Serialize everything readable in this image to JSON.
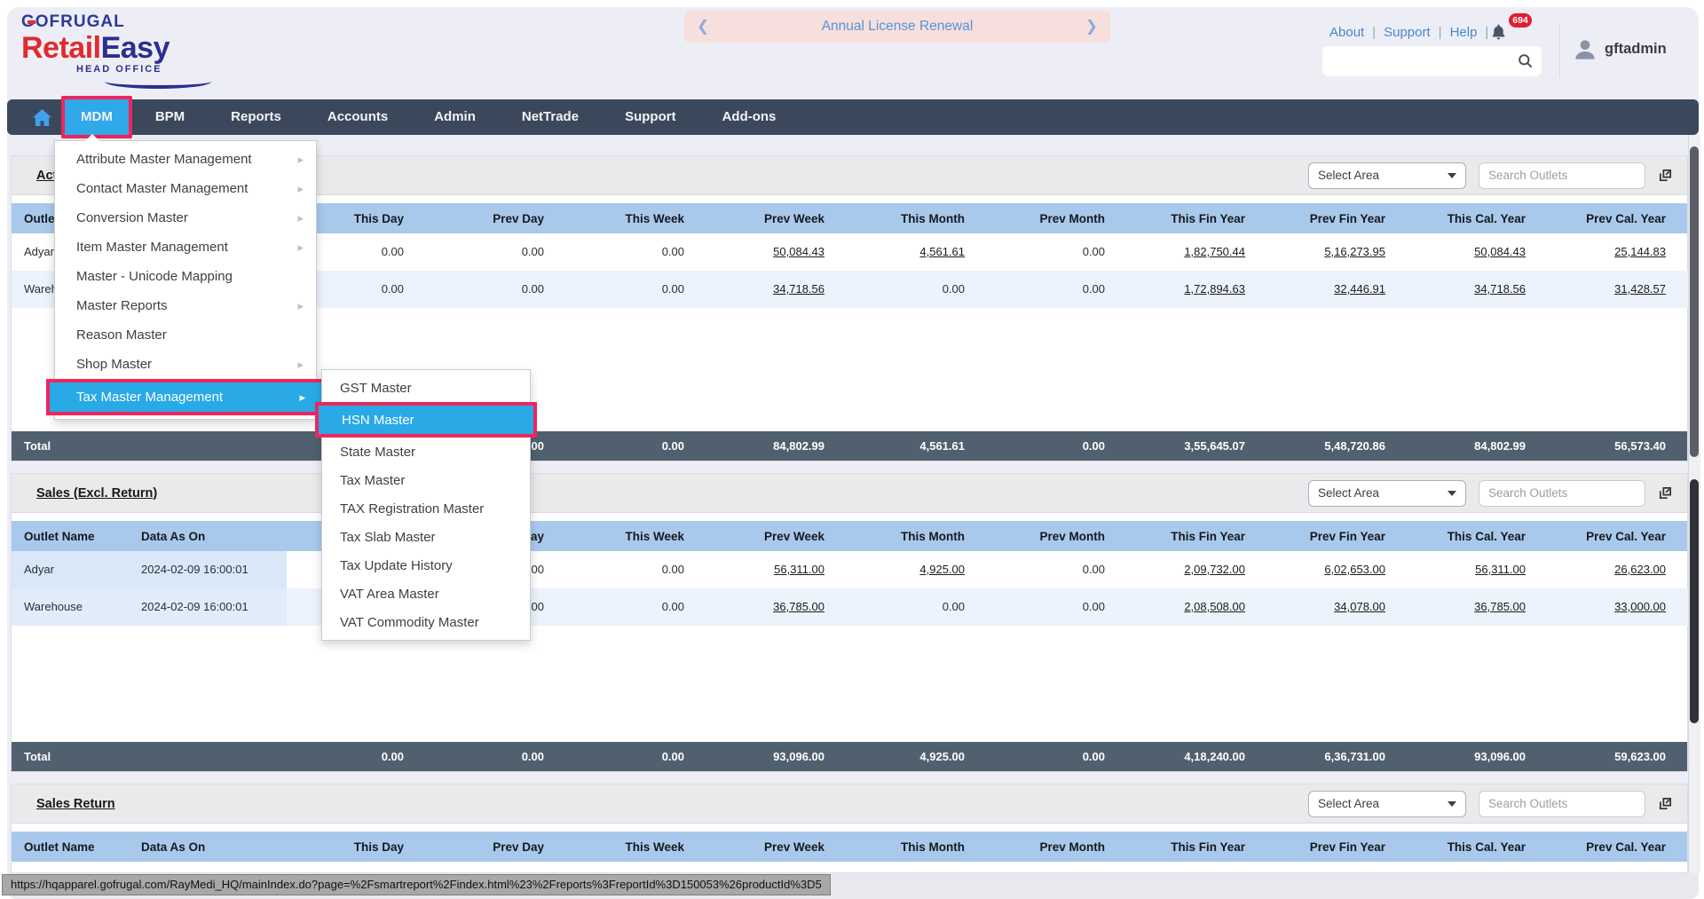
{
  "logo": {
    "top": "GOFRUGAL",
    "retail": "Retail",
    "easy": "Easy",
    "tagline": "HEAD OFFICE"
  },
  "banner": {
    "prev": "❮",
    "label": "Annual License Renewal",
    "next": "❯"
  },
  "topbar": {
    "links": [
      "About",
      "Support",
      "Help"
    ],
    "separator": "|",
    "bell_badge": "694",
    "search_value": "",
    "username": "gftadmin"
  },
  "nav": {
    "items": [
      {
        "label": "MDM",
        "active": true
      },
      {
        "label": "BPM"
      },
      {
        "label": "Reports"
      },
      {
        "label": "Accounts"
      },
      {
        "label": "Admin"
      },
      {
        "label": "NetTrade"
      },
      {
        "label": "Support"
      },
      {
        "label": "Add-ons"
      }
    ]
  },
  "mdm_menu": {
    "items": [
      {
        "label": "Attribute Master Management",
        "has_submenu": true
      },
      {
        "label": "Contact Master Management",
        "has_submenu": true
      },
      {
        "label": "Conversion Master",
        "has_submenu": true
      },
      {
        "label": "Item Master Management",
        "has_submenu": true
      },
      {
        "label": "Master - Unicode Mapping",
        "has_submenu": false
      },
      {
        "label": "Master Reports",
        "has_submenu": true
      },
      {
        "label": "Reason Master",
        "has_submenu": false
      },
      {
        "label": "Shop Master",
        "has_submenu": true
      },
      {
        "label": "Tax Master Management",
        "has_submenu": true,
        "active": true
      }
    ]
  },
  "tax_submenu": {
    "items": [
      {
        "label": "GST Master"
      },
      {
        "label": "HSN Master",
        "active": true
      },
      {
        "label": "State Master"
      },
      {
        "label": "Tax Master"
      },
      {
        "label": "TAX Registration Master"
      },
      {
        "label": "Tax Slab Master"
      },
      {
        "label": "Tax Update History"
      },
      {
        "label": "VAT Area Master"
      },
      {
        "label": "VAT Commodity Master"
      }
    ]
  },
  "table_columns": [
    "Outlet Name",
    "Data As On",
    "This Day",
    "Prev Day",
    "This Week",
    "Prev Week",
    "This Month",
    "Prev Month",
    "This Fin Year",
    "Prev Fin Year",
    "This Cal. Year",
    "Prev Cal. Year"
  ],
  "controls": {
    "select_area": "Select Area",
    "search_placeholder": "Search Outlets"
  },
  "sections": [
    {
      "title": "Actual Sales",
      "rows": [
        {
          "outlet": "Adyar",
          "data_as_on": "",
          "values": [
            {
              "v": "0.00"
            },
            {
              "v": "0.00"
            },
            {
              "v": "0.00"
            },
            {
              "v": "50,084.43",
              "link": true
            },
            {
              "v": "4,561.61",
              "link": true
            },
            {
              "v": "0.00"
            },
            {
              "v": "1,82,750.44",
              "link": true
            },
            {
              "v": "5,16,273.95",
              "link": true
            },
            {
              "v": "50,084.43",
              "link": true
            },
            {
              "v": "25,144.83",
              "link": true
            }
          ]
        },
        {
          "outlet": "Warehouse",
          "data_as_on": "",
          "values": [
            {
              "v": "0.00"
            },
            {
              "v": "0.00"
            },
            {
              "v": "0.00"
            },
            {
              "v": "34,718.56",
              "link": true
            },
            {
              "v": "0.00"
            },
            {
              "v": "0.00"
            },
            {
              "v": "1,72,894.63",
              "link": true
            },
            {
              "v": "32,446.91",
              "link": true
            },
            {
              "v": "34,718.56",
              "link": true
            },
            {
              "v": "31,428.57",
              "link": true
            }
          ]
        }
      ],
      "total_label": "Total",
      "total": [
        "0.00",
        "0.00",
        "0.00",
        "84,802.99",
        "4,561.61",
        "0.00",
        "3,55,645.07",
        "5,48,720.86",
        "84,802.99",
        "56,573.40"
      ]
    },
    {
      "title": "Sales (Excl. Return)",
      "rows": [
        {
          "outlet": "Adyar",
          "data_as_on": "2024-02-09 16:00:01",
          "values": [
            {
              "v": "0.00"
            },
            {
              "v": "0.00"
            },
            {
              "v": "0.00"
            },
            {
              "v": "56,311.00",
              "link": true
            },
            {
              "v": "4,925.00",
              "link": true
            },
            {
              "v": "0.00"
            },
            {
              "v": "2,09,732.00",
              "link": true
            },
            {
              "v": "6,02,653.00",
              "link": true
            },
            {
              "v": "56,311.00",
              "link": true
            },
            {
              "v": "26,623.00",
              "link": true
            }
          ]
        },
        {
          "outlet": "Warehouse",
          "data_as_on": "2024-02-09 16:00:01",
          "values": [
            {
              "v": "0.00"
            },
            {
              "v": "0.00"
            },
            {
              "v": "0.00"
            },
            {
              "v": "36,785.00",
              "link": true
            },
            {
              "v": "0.00"
            },
            {
              "v": "0.00"
            },
            {
              "v": "2,08,508.00",
              "link": true
            },
            {
              "v": "34,078.00",
              "link": true
            },
            {
              "v": "36,785.00",
              "link": true
            },
            {
              "v": "33,000.00",
              "link": true
            }
          ]
        }
      ],
      "total_label": "Total",
      "total": [
        "0.00",
        "0.00",
        "0.00",
        "93,096.00",
        "4,925.00",
        "0.00",
        "4,18,240.00",
        "6,36,731.00",
        "93,096.00",
        "59,623.00"
      ]
    },
    {
      "title": "Sales Return",
      "rows": [],
      "total": null
    }
  ],
  "statusbar": {
    "url": "https://hqapparel.gofrugal.com/RayMedi_HQ/mainIndex.do?page=%2Fsmartreport%2Findex.html%23%2Freports%3FreportId%3D150053%26productId%3D5"
  }
}
